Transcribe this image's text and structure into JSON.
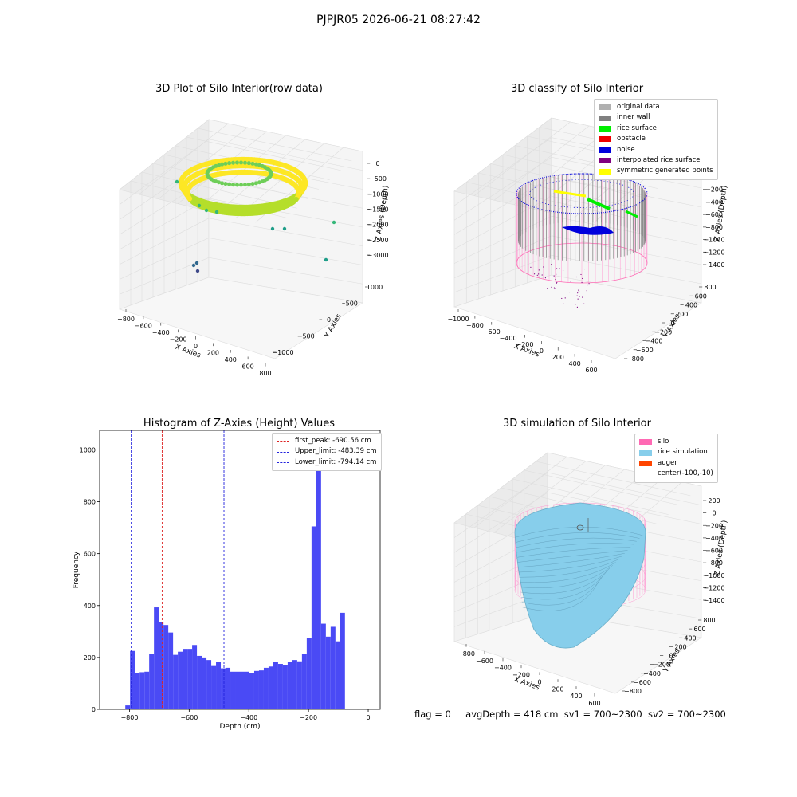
{
  "suptitle": "PJPJR05 2026-06-21 08:27:42",
  "footer": {
    "flag": "flag = 0",
    "avg_depth": "avgDepth = 418 cm",
    "sv1": "sv1 = 700~2300",
    "sv2": "sv2 = 700~2300"
  },
  "chart_data": [
    {
      "type": "scatter",
      "title": "3D Plot of Silo Interior(row data)",
      "xlabel": "X Axies",
      "ylabel": "Y Axies",
      "zlabel": "Z Axies (Depth)",
      "xticks": [
        "−800",
        "−600",
        "−400",
        "−200",
        "0",
        "200",
        "400",
        "600",
        "800"
      ],
      "yticks": [
        "−1000",
        "−500",
        "0",
        "500",
        "1000"
      ],
      "zticks": [
        "0",
        "−500",
        "−1000",
        "−1500",
        "−2000",
        "−2500",
        "−3000"
      ],
      "colormap": "viridis"
    },
    {
      "type": "scatter",
      "title": "3D classify of Silo Interior",
      "xlabel": "X Axies",
      "ylabel": "Y Axies",
      "zlabel": "Z Axies (Depth)",
      "xticks": [
        "−1000",
        "−800",
        "−600",
        "−400",
        "−200",
        "0",
        "200",
        "400",
        "600"
      ],
      "yticks": [
        "−800",
        "−600",
        "−400",
        "−200",
        "0",
        "200",
        "400",
        "600",
        "800"
      ],
      "zticks": [
        "0",
        "−200",
        "−400",
        "−600",
        "−800",
        "−1000",
        "−1200",
        "−1400"
      ],
      "legend": [
        {
          "label": "original data",
          "color": "#b0b0b0"
        },
        {
          "label": "inner wall",
          "color": "#808080"
        },
        {
          "label": "rice surface",
          "color": "#00ee00"
        },
        {
          "label": "obstacle",
          "color": "#ee0000"
        },
        {
          "label": "noise",
          "color": "#0000dd"
        },
        {
          "label": "interpolated rice surface",
          "color": "#800080"
        },
        {
          "label": "symmetric generated points",
          "color": "#ffff00"
        }
      ]
    },
    {
      "type": "bar",
      "title": "Histogram of Z-Axies (Height) Values",
      "xlabel": "Depth (cm)",
      "ylabel": "Frequency",
      "xlim": [
        -900,
        40
      ],
      "ylim": [
        0,
        1075
      ],
      "xticks": [
        -800,
        -600,
        -400,
        -200,
        0
      ],
      "xtick_labels": [
        "−800",
        "−600",
        "−400",
        "−200",
        "0"
      ],
      "yticks": [
        0,
        200,
        400,
        600,
        800,
        1000
      ],
      "bin_width": 16,
      "bin_start": -830,
      "values": [
        3,
        15,
        225,
        140,
        143,
        145,
        212,
        393,
        335,
        325,
        296,
        210,
        222,
        233,
        233,
        248,
        206,
        200,
        190,
        167,
        182,
        158,
        160,
        145,
        145,
        145,
        145,
        140,
        148,
        150,
        160,
        165,
        182,
        175,
        172,
        183,
        190,
        185,
        212,
        275,
        705,
        1020,
        330,
        280,
        318,
        262,
        372
      ],
      "bar_color": "#4a4af5",
      "lines": [
        {
          "label": "first_peak: -690.56 cm",
          "x": -690.56,
          "color": "#dd2222"
        },
        {
          "label": "Upper_limit: -483.39 cm",
          "x": -483.39,
          "color": "#2222dd"
        },
        {
          "label": "Lower_limit: -794.14 cm",
          "x": -794.14,
          "color": "#2222dd"
        }
      ]
    },
    {
      "type": "surface",
      "title": "3D simulation of Silo Interior",
      "xlabel": "X Axies",
      "ylabel": "Y Axies",
      "zlabel": "Z Axies (Depth)",
      "xticks": [
        "−800",
        "−600",
        "−400",
        "−200",
        "0",
        "200",
        "400",
        "600"
      ],
      "yticks": [
        "−800",
        "−600",
        "−400",
        "−200",
        "0",
        "200",
        "400",
        "600",
        "800"
      ],
      "zticks": [
        "200",
        "0",
        "−200",
        "−400",
        "−600",
        "−800",
        "−1000",
        "−1200",
        "−1400"
      ],
      "legend": [
        {
          "label": "silo",
          "color": "#ff69b4"
        },
        {
          "label": "rice simulation",
          "color": "#87ceeb"
        },
        {
          "label": "auger",
          "color": "#ff4500"
        },
        {
          "label": "center(-100,-10)",
          "color": ""
        }
      ]
    }
  ]
}
